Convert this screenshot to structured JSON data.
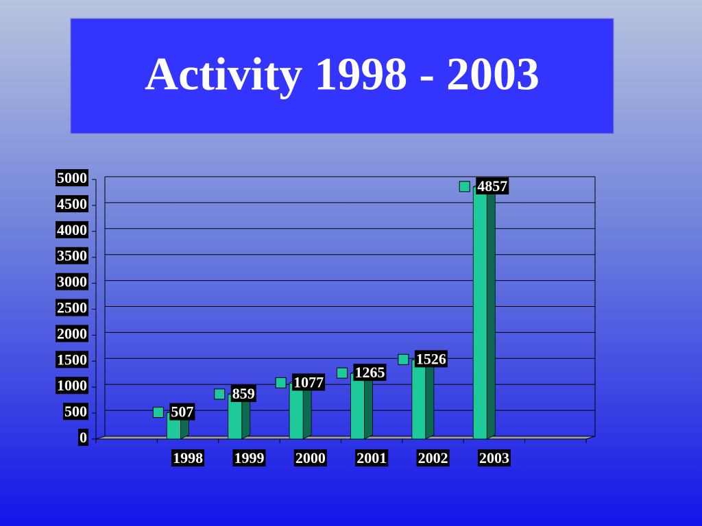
{
  "chart_data": {
    "type": "bar",
    "title": "Activity 1998 - 2003",
    "categories": [
      "1998",
      "1999",
      "2000",
      "2001",
      "2002",
      "2003"
    ],
    "values": [
      507,
      859,
      1077,
      1265,
      1526,
      4857
    ],
    "color": "#1ec99a",
    "ylim": [
      0,
      5000
    ],
    "yticks": [
      0,
      500,
      1000,
      1500,
      2000,
      2500,
      3000,
      3500,
      4000,
      4500,
      5000
    ],
    "grid": true
  }
}
